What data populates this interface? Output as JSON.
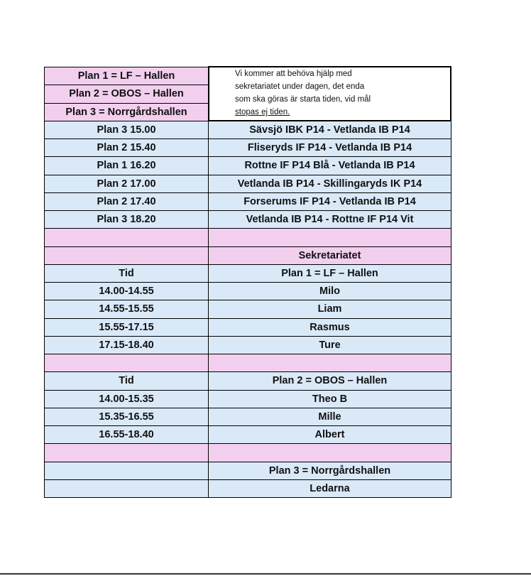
{
  "colors": {
    "pink": "#f2cfee",
    "blue": "#dae9f8"
  },
  "note": {
    "lines": [
      "Vi kommer att behöva hjälp med",
      "sekretariatet under dagen,  det enda",
      "som ska göras är starta tiden, vid mål"
    ],
    "underlined_line": "stopas ej tiden."
  },
  "rows": [
    {
      "color": "pink",
      "left": "Plan 1 = LF – Hallen",
      "right": ""
    },
    {
      "color": "pink",
      "left": "Plan 2 = OBOS – Hallen",
      "right": ""
    },
    {
      "color": "pink",
      "left": "Plan 3 = Norrgårdshallen",
      "right": ""
    },
    {
      "color": "blue",
      "left": "Plan 3 15.00",
      "right": "Sävsjö IBK P14 - Vetlanda IB P14"
    },
    {
      "color": "blue",
      "left": "Plan 2 15.40",
      "right": "Fliseryds IF P14 - Vetlanda IB P14"
    },
    {
      "color": "blue",
      "left": "Plan 1 16.20",
      "right": "Rottne IF P14 Blå - Vetlanda IB P14"
    },
    {
      "color": "blue",
      "left": "Plan 2 17.00",
      "right": "Vetlanda IB P14 - Skillingaryds IK P14"
    },
    {
      "color": "blue",
      "left": "Plan 2 17.40",
      "right": "Forserums IF P14 - Vetlanda IB P14"
    },
    {
      "color": "blue",
      "left": "Plan 3 18.20",
      "right": "Vetlanda IB P14 - Rottne IF P14 Vit"
    },
    {
      "color": "pink",
      "left": "",
      "right": ""
    },
    {
      "color": "pink",
      "left": "",
      "right": "Sekretariatet"
    },
    {
      "color": "blue",
      "left": "Tid",
      "right": "Plan 1 = LF – Hallen"
    },
    {
      "color": "blue",
      "left": "14.00-14.55",
      "right": "Milo"
    },
    {
      "color": "blue",
      "left": "14.55-15.55",
      "right": "Liam"
    },
    {
      "color": "blue",
      "left": "15.55-17.15",
      "right": "Rasmus"
    },
    {
      "color": "blue",
      "left": "17.15-18.40",
      "right": "Ture"
    },
    {
      "color": "pink",
      "left": "",
      "right": ""
    },
    {
      "color": "blue",
      "left": "Tid",
      "right": "Plan 2 = OBOS – Hallen"
    },
    {
      "color": "blue",
      "left": "14.00-15.35",
      "right": "Theo B"
    },
    {
      "color": "blue",
      "left": "15.35-16.55",
      "right": "Mille"
    },
    {
      "color": "blue",
      "left": "16.55-18.40",
      "right": "Albert"
    },
    {
      "color": "pink",
      "left": "",
      "right": ""
    },
    {
      "color": "blue",
      "left": "",
      "right": "Plan 3 = Norrgårdshallen"
    },
    {
      "color": "blue",
      "left": "",
      "right": "Ledarna"
    }
  ]
}
